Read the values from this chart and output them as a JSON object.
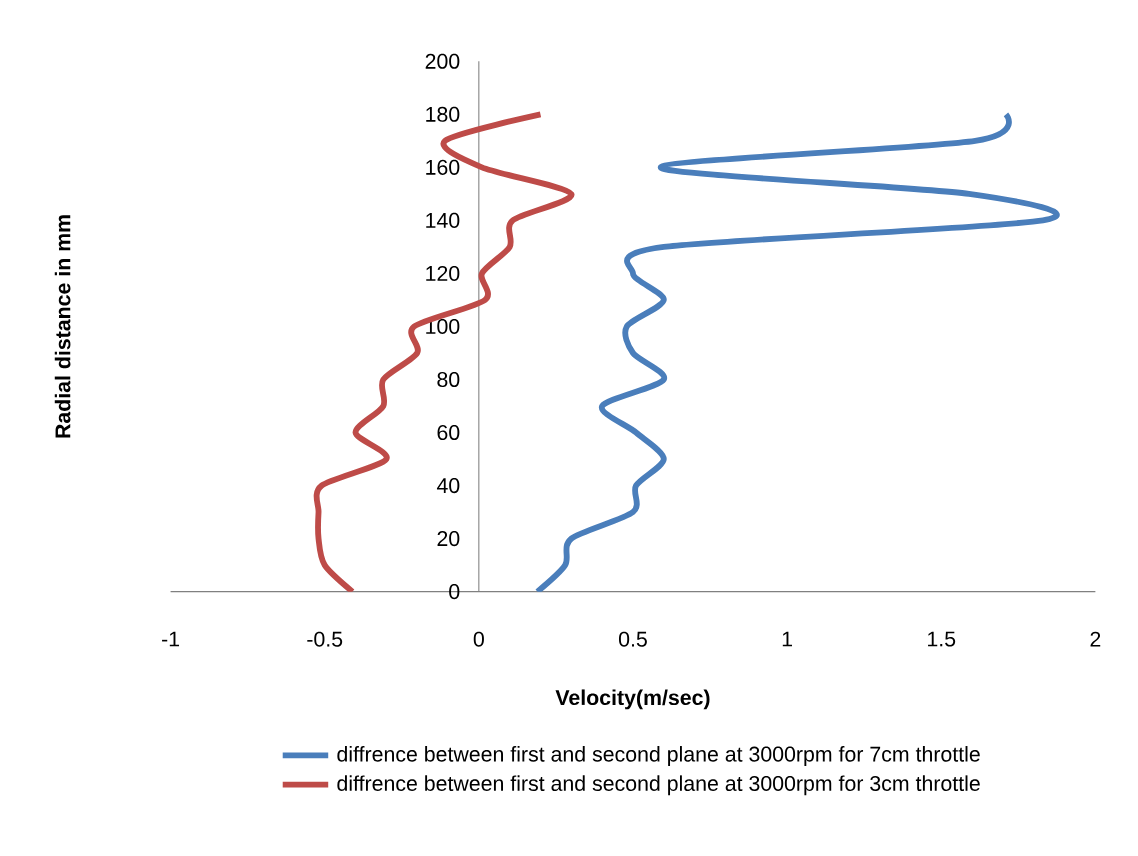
{
  "chart_data": {
    "type": "line",
    "xlabel": "Velocity(m/sec)",
    "ylabel": "Radial distance  in mm",
    "xlim": [
      -1,
      2
    ],
    "xticks": [
      -1,
      -0.5,
      0,
      0.5,
      1,
      1.5,
      2
    ],
    "ylim": [
      0,
      200
    ],
    "yticks": [
      0,
      20,
      40,
      60,
      80,
      100,
      120,
      140,
      160,
      180,
      200
    ],
    "grid": false,
    "legend": "bottom",
    "series": [
      {
        "name": "diffrence between first and  second plane at 3000rpm for 7cm throttle",
        "color": "#4a7ebb",
        "x": [
          0.19,
          0.28,
          0.3,
          0.5,
          0.51,
          0.6,
          0.51,
          0.4,
          0.6,
          0.5,
          0.48,
          0.6,
          0.5,
          0.6,
          1.83,
          1.59,
          0.59,
          1.61,
          1.71
        ],
        "values": [
          0,
          10,
          20,
          30,
          40,
          50,
          60,
          70,
          80,
          90,
          100,
          110,
          120,
          130,
          140,
          150,
          160,
          170,
          180
        ]
      },
      {
        "name": "diffrence between first and  second plane at 3000rpm for 3cm throttle",
        "color": "#be4b48",
        "x": [
          -0.41,
          -0.5,
          -0.52,
          -0.52,
          -0.51,
          -0.3,
          -0.4,
          -0.31,
          -0.31,
          -0.2,
          -0.21,
          0.02,
          0.01,
          0.1,
          0.11,
          0.3,
          0.01,
          -0.11,
          0.2
        ],
        "values": [
          0,
          10,
          20,
          30,
          40,
          50,
          60,
          70,
          80,
          90,
          100,
          110,
          120,
          130,
          140,
          150,
          160,
          170,
          180
        ]
      }
    ]
  }
}
